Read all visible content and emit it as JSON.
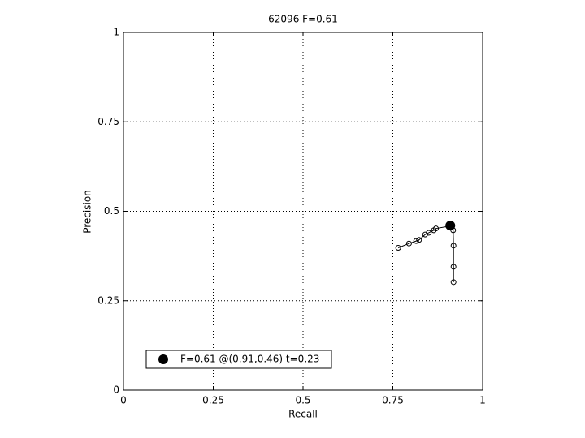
{
  "chart_data": {
    "type": "line",
    "title": "62096 F=0.61",
    "x_label": "Recall",
    "y_label": "Precision",
    "xlim": [
      0,
      1
    ],
    "ylim": [
      0,
      1
    ],
    "xticks": [
      0,
      0.25,
      0.5,
      0.75,
      1
    ],
    "yticks": [
      0,
      0.25,
      0.5,
      0.75,
      1
    ],
    "grid": true,
    "legend_position": "lower left",
    "series": [
      {
        "name": "F=0.61 @(0.91,0.46) t=0.23",
        "color": "#000000",
        "x": [
          0.919,
          0.919,
          0.919,
          0.918,
          0.912,
          0.905,
          0.87,
          0.864,
          0.85,
          0.84,
          0.823,
          0.815,
          0.795,
          0.765
        ],
        "values": [
          0.302,
          0.345,
          0.404,
          0.447,
          0.455,
          0.458,
          0.452,
          0.447,
          0.44,
          0.435,
          0.42,
          0.417,
          0.41,
          0.398
        ]
      }
    ],
    "best": {
      "x": 0.91,
      "y": 0.46
    }
  }
}
